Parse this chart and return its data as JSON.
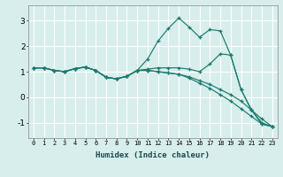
{
  "xlabel": "Humidex (Indice chaleur)",
  "xlim": [
    -0.5,
    23.5
  ],
  "ylim": [
    -1.6,
    3.6
  ],
  "yticks": [
    -1,
    0,
    1,
    2,
    3
  ],
  "xticks": [
    0,
    1,
    2,
    3,
    4,
    5,
    6,
    7,
    8,
    9,
    10,
    11,
    12,
    13,
    14,
    15,
    16,
    17,
    18,
    19,
    20,
    21,
    22,
    23
  ],
  "bg_color": "#d8eeed",
  "grid_color": "#ffffff",
  "line_color": "#1a7a6e",
  "lines": [
    [
      1.15,
      1.15,
      1.05,
      1.0,
      1.12,
      1.18,
      1.05,
      0.78,
      0.72,
      0.82,
      1.05,
      1.5,
      2.2,
      2.7,
      3.1,
      2.75,
      2.35,
      2.65,
      2.6,
      1.65,
      0.3,
      -0.5,
      -1.0,
      -1.15
    ],
    [
      1.15,
      1.15,
      1.05,
      1.0,
      1.12,
      1.18,
      1.05,
      0.78,
      0.72,
      0.82,
      1.05,
      1.1,
      1.15,
      1.15,
      1.15,
      1.1,
      1.0,
      1.3,
      1.7,
      1.65,
      0.3,
      -0.5,
      -1.05,
      -1.15
    ],
    [
      1.15,
      1.15,
      1.05,
      1.0,
      1.12,
      1.18,
      1.05,
      0.78,
      0.72,
      0.82,
      1.05,
      1.05,
      1.0,
      0.95,
      0.9,
      0.8,
      0.65,
      0.5,
      0.3,
      0.1,
      -0.15,
      -0.5,
      -0.85,
      -1.15
    ],
    [
      1.15,
      1.15,
      1.05,
      1.0,
      1.12,
      1.18,
      1.05,
      0.78,
      0.72,
      0.82,
      1.05,
      1.05,
      1.0,
      0.95,
      0.9,
      0.75,
      0.55,
      0.35,
      0.1,
      -0.15,
      -0.45,
      -0.75,
      -1.05,
      -1.15
    ]
  ]
}
